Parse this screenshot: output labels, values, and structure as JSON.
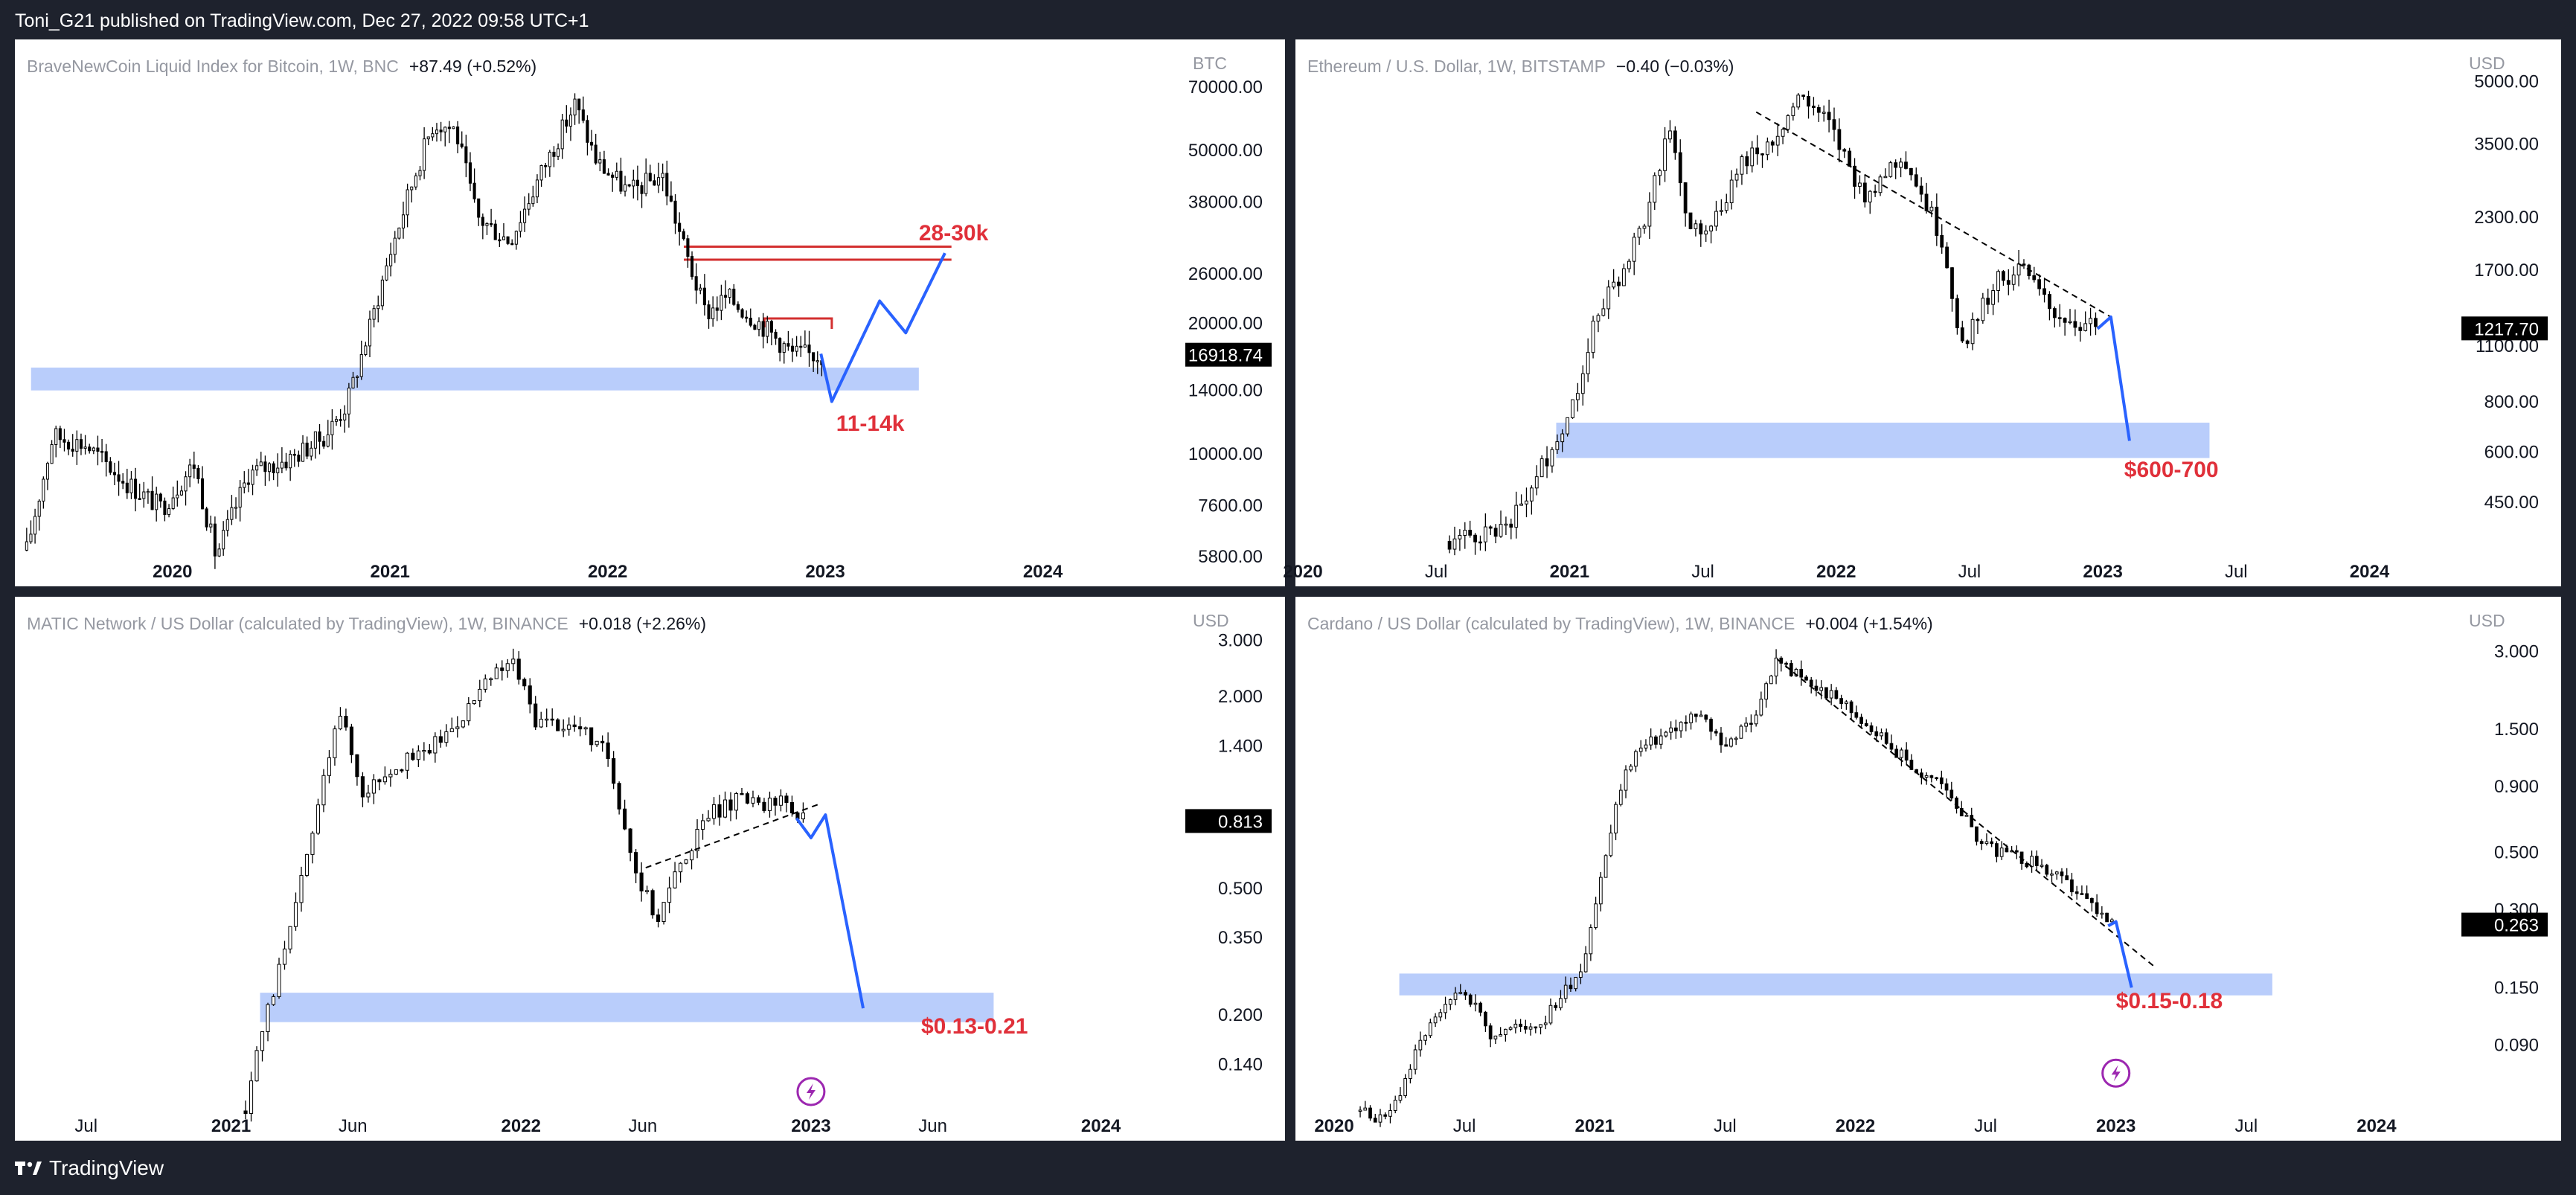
{
  "header": {
    "text": "Toni_G21 published on TradingView.com, Dec 27, 2022 09:58 UTC+1"
  },
  "footer": {
    "brand": "TradingView",
    "logo_icon": "tradingview-logo-icon"
  },
  "colors": {
    "background": "#1e222d",
    "zone": "#b9cdfb",
    "projection": "#2962ff",
    "annotation": "#e0303a",
    "resistance": "#d32f2f"
  },
  "chart_data": [
    {
      "type": "candlestick",
      "title": "BraveNewCoin Liquid Index for Bitcoin, 1W, BNC",
      "change": "+87.49 (+0.52%)",
      "currency": "BTC",
      "y_scale": "log",
      "ylim": [
        5800,
        80000
      ],
      "y_ticks": [
        "70000.00",
        "50000.00",
        "38000.00",
        "26000.00",
        "20000.00",
        "14000.00",
        "10000.00",
        "7600.00",
        "5800.00"
      ],
      "y_tick_values": [
        70000,
        50000,
        38000,
        26000,
        20000,
        14000,
        10000,
        7600,
        5800
      ],
      "x_ticks": [
        "2020",
        "2021",
        "2022",
        "2023",
        "2024"
      ],
      "x_tick_values": [
        2020.0,
        2021.0,
        2022.0,
        2023.0,
        2024.0
      ],
      "xlim": [
        2019.31,
        2024.6
      ],
      "last_price": "16918.74",
      "last_value": 16918.74,
      "path": [
        [
          2019.33,
          6000
        ],
        [
          2019.45,
          11000
        ],
        [
          2019.6,
          10500
        ],
        [
          2019.8,
          8500
        ],
        [
          2019.95,
          7500
        ],
        [
          2020.1,
          9500
        ],
        [
          2020.2,
          5800
        ],
        [
          2020.35,
          9000
        ],
        [
          2020.55,
          9800
        ],
        [
          2020.7,
          11000
        ],
        [
          2020.8,
          13000
        ],
        [
          2020.9,
          19000
        ],
        [
          2021.0,
          29000
        ],
        [
          2021.12,
          45000
        ],
        [
          2021.2,
          58000
        ],
        [
          2021.3,
          56000
        ],
        [
          2021.4,
          35000
        ],
        [
          2021.55,
          31000
        ],
        [
          2021.7,
          45000
        ],
        [
          2021.85,
          64000
        ],
        [
          2021.95,
          47000
        ],
        [
          2022.1,
          40000
        ],
        [
          2022.25,
          44000
        ],
        [
          2022.35,
          30000
        ],
        [
          2022.45,
          21000
        ],
        [
          2022.55,
          23000
        ],
        [
          2022.7,
          20000
        ],
        [
          2022.85,
          17000
        ],
        [
          2022.98,
          16900
        ]
      ],
      "zones": [
        {
          "y0": 14000,
          "y1": 15800,
          "x0": 2019.35,
          "x1": 2023.43
        }
      ],
      "resistance": [
        {
          "y0": 28000,
          "y1": 30000,
          "x0": 2022.35,
          "x1": 2023.58
        }
      ],
      "mini_box": {
        "y": 20500,
        "x0": 2022.72,
        "x1": 2023.03
      },
      "projection": [
        [
          2022.98,
          17000
        ],
        [
          2023.03,
          13200
        ],
        [
          2023.25,
          22500
        ],
        [
          2023.37,
          19000
        ],
        [
          2023.55,
          29000
        ]
      ],
      "labels": [
        {
          "text": "28-30k",
          "x": 2023.43,
          "y": 31000
        },
        {
          "text": "11-14k",
          "x": 2023.05,
          "y": 11300
        }
      ]
    },
    {
      "type": "candlestick",
      "title": "Ethereum / U.S. Dollar, 1W, BITSTAMP",
      "change": "−0.40 (−0.03%)",
      "currency": "USD",
      "y_scale": "log",
      "ylim": [
        330,
        5600
      ],
      "y_ticks": [
        "5000.00",
        "3500.00",
        "2300.00",
        "1700.00",
        "1100.00",
        "800.00",
        "600.00",
        "450.00"
      ],
      "y_tick_values": [
        5000,
        3500,
        2300,
        1700,
        1100,
        800,
        600,
        450
      ],
      "x_ticks": [
        "2020",
        "Jul",
        "2021",
        "Jul",
        "2022",
        "Jul",
        "2023",
        "Jul",
        "2024"
      ],
      "x_tick_values": [
        2020.0,
        2020.5,
        2021.0,
        2021.5,
        2022.0,
        2022.5,
        2023.0,
        2023.5,
        2024.0
      ],
      "xlim": [
        2020.0,
        2024.3
      ],
      "last_price": "1217.70",
      "last_value": 1217.7,
      "path": [
        [
          2020.55,
          360
        ],
        [
          2020.7,
          380
        ],
        [
          2020.8,
          420
        ],
        [
          2020.9,
          560
        ],
        [
          2021.0,
          750
        ],
        [
          2021.1,
          1300
        ],
        [
          2021.2,
          1700
        ],
        [
          2021.3,
          2400
        ],
        [
          2021.37,
          4000
        ],
        [
          2021.45,
          2100
        ],
        [
          2021.55,
          2300
        ],
        [
          2021.65,
          3200
        ],
        [
          2021.75,
          3500
        ],
        [
          2021.87,
          4600
        ],
        [
          2021.97,
          3900
        ],
        [
          2022.1,
          2600
        ],
        [
          2022.25,
          3300
        ],
        [
          2022.4,
          2000
        ],
        [
          2022.47,
          1100
        ],
        [
          2022.6,
          1600
        ],
        [
          2022.7,
          1700
        ],
        [
          2022.8,
          1350
        ],
        [
          2022.9,
          1250
        ],
        [
          2022.98,
          1210
        ]
      ],
      "zones": [
        {
          "y0": 580,
          "y1": 710,
          "x0": 2020.95,
          "x1": 2023.4
        }
      ],
      "trendline": [
        [
          2021.7,
          4200
        ],
        [
          2023.03,
          1300
        ]
      ],
      "projection": [
        [
          2022.98,
          1215
        ],
        [
          2023.03,
          1300
        ],
        [
          2023.1,
          640
        ]
      ],
      "labels": [
        {
          "text": "$600-700",
          "x": 2023.08,
          "y": 520
        }
      ]
    },
    {
      "type": "candlestick",
      "title": "MATIC Network / US Dollar (calculated by TradingView), 1W, BINANCE",
      "change": "+0.018 (+2.26%)",
      "currency": "USD",
      "y_scale": "log",
      "ylim": [
        0.1,
        3.5
      ],
      "y_ticks": [
        "3.000",
        "2.000",
        "1.400",
        "0.500",
        "0.350",
        "0.200",
        "0.140"
      ],
      "y_tick_values": [
        3.0,
        2.0,
        1.4,
        0.5,
        0.35,
        0.2,
        0.14
      ],
      "x_ticks": [
        "Jul",
        "2021",
        "Jun",
        "2022",
        "Jun",
        "2023",
        "Jun",
        "2024"
      ],
      "x_tick_values": [
        2020.5,
        2021.0,
        2021.42,
        2022.0,
        2022.42,
        2023.0,
        2023.42,
        2024.0
      ],
      "xlim": [
        2020.28,
        2024.25
      ],
      "last_price": "0.813",
      "last_value": 0.813,
      "path": [
        [
          2021.05,
          0.1
        ],
        [
          2021.12,
          0.2
        ],
        [
          2021.2,
          0.35
        ],
        [
          2021.3,
          0.9
        ],
        [
          2021.37,
          1.9
        ],
        [
          2021.45,
          1.0
        ],
        [
          2021.55,
          1.2
        ],
        [
          2021.65,
          1.3
        ],
        [
          2021.75,
          1.55
        ],
        [
          2021.9,
          2.3
        ],
        [
          2021.97,
          2.6
        ],
        [
          2022.05,
          1.7
        ],
        [
          2022.2,
          1.6
        ],
        [
          2022.3,
          1.3
        ],
        [
          2022.4,
          0.55
        ],
        [
          2022.47,
          0.4
        ],
        [
          2022.55,
          0.6
        ],
        [
          2022.65,
          0.85
        ],
        [
          2022.75,
          0.95
        ],
        [
          2022.85,
          0.9
        ],
        [
          2022.9,
          0.95
        ],
        [
          2022.97,
          0.82
        ]
      ],
      "zones": [
        {
          "y0": 0.19,
          "y1": 0.235,
          "x0": 2021.1,
          "x1": 2023.63
        }
      ],
      "trendline": [
        [
          2022.43,
          0.58
        ],
        [
          2023.03,
          0.92
        ]
      ],
      "projection": [
        [
          2022.95,
          0.83
        ],
        [
          2023.0,
          0.72
        ],
        [
          2023.05,
          0.85
        ],
        [
          2023.18,
          0.21
        ]
      ],
      "labels": [
        {
          "text": "$0.13-0.21",
          "x": 2023.38,
          "y": 0.175
        }
      ],
      "marker": {
        "icon": "flash-event-icon",
        "x": 2023.0,
        "y": 0.115
      }
    },
    {
      "type": "candlestick",
      "title": "Cardano / US Dollar (calculated by TradingView), 1W, BINANCE",
      "change": "+0.004 (+1.54%)",
      "currency": "USD",
      "y_scale": "log",
      "ylim": [
        0.05,
        4.0
      ],
      "y_ticks": [
        "3.000",
        "1.500",
        "0.900",
        "0.500",
        "0.300",
        "0.150",
        "0.090"
      ],
      "y_tick_values": [
        3.0,
        1.5,
        0.9,
        0.5,
        0.3,
        0.15,
        0.09
      ],
      "x_ticks": [
        "2020",
        "Jul",
        "2021",
        "Jul",
        "2022",
        "Jul",
        "2023",
        "Jul",
        "2024"
      ],
      "x_tick_values": [
        2020.0,
        2020.5,
        2021.0,
        2021.5,
        2022.0,
        2022.5,
        2023.0,
        2023.5,
        2024.0
      ],
      "xlim": [
        2019.88,
        2024.28
      ],
      "last_price": "0.263",
      "last_value": 0.263,
      "path": [
        [
          2020.1,
          0.05
        ],
        [
          2020.2,
          0.045
        ],
        [
          2020.35,
          0.1
        ],
        [
          2020.5,
          0.15
        ],
        [
          2020.6,
          0.1
        ],
        [
          2020.8,
          0.11
        ],
        [
          2020.95,
          0.18
        ],
        [
          2021.1,
          0.9
        ],
        [
          2021.15,
          1.2
        ],
        [
          2021.3,
          1.5
        ],
        [
          2021.4,
          1.7
        ],
        [
          2021.5,
          1.3
        ],
        [
          2021.6,
          1.6
        ],
        [
          2021.7,
          2.8
        ],
        [
          2021.8,
          2.3
        ],
        [
          2021.95,
          1.9
        ],
        [
          2022.1,
          1.4
        ],
        [
          2022.25,
          1.0
        ],
        [
          2022.35,
          0.9
        ],
        [
          2022.45,
          0.6
        ],
        [
          2022.55,
          0.5
        ],
        [
          2022.7,
          0.45
        ],
        [
          2022.85,
          0.35
        ],
        [
          2022.98,
          0.26
        ]
      ],
      "zones": [
        {
          "y0": 0.14,
          "y1": 0.17,
          "x0": 2020.25,
          "x1": 2023.6
        }
      ],
      "trendline": [
        [
          2021.7,
          2.8
        ],
        [
          2023.15,
          0.18
        ]
      ],
      "projection": [
        [
          2022.97,
          0.26
        ],
        [
          2023.0,
          0.27
        ],
        [
          2023.06,
          0.15
        ]
      ],
      "labels": [
        {
          "text": "$0.15-0.18",
          "x": 2023.0,
          "y": 0.125
        }
      ],
      "marker": {
        "icon": "flash-event-icon",
        "x": 2023.0,
        "y": 0.07
      }
    }
  ]
}
